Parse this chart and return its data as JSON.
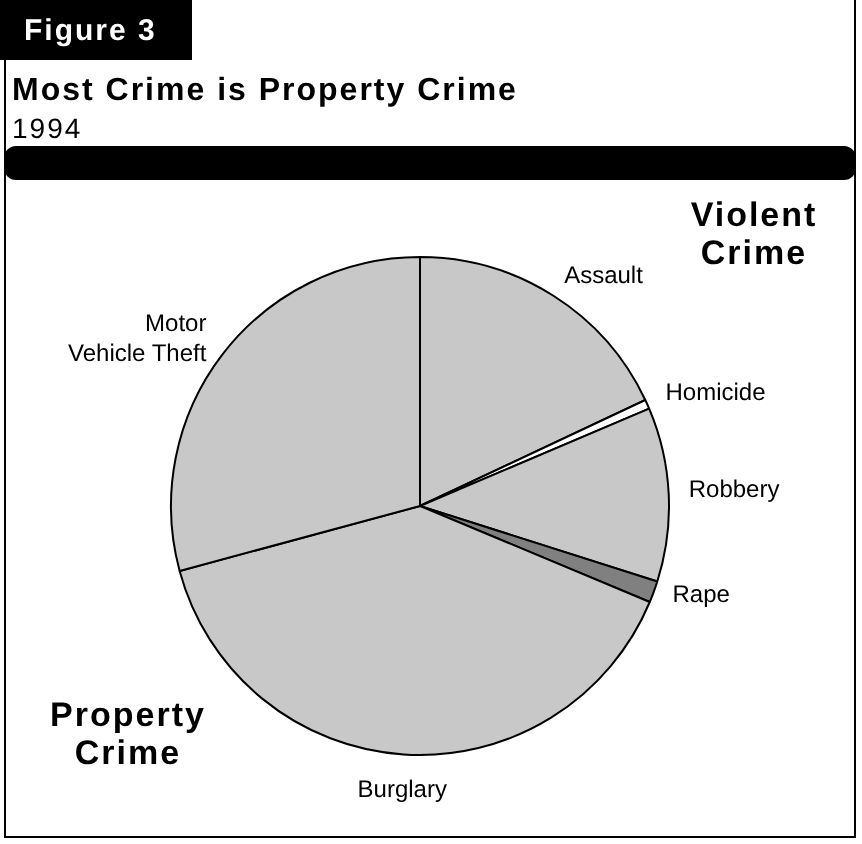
{
  "chart_data": {
    "type": "pie",
    "title": "Most Crime is Property Crime",
    "subtitle": "1994",
    "categories": [
      "Assault",
      "Homicide",
      "Robbery",
      "Rape",
      "Burglary",
      "Motor Vehicle Theft"
    ],
    "values": [
      18,
      0.6,
      11.3,
      1.4,
      39.5,
      29.2
    ],
    "colors": [
      "#c8c8c8",
      "#ffffff",
      "#c8c8c8",
      "#808080",
      "#c8c8c8",
      "#c8c8c8"
    ],
    "annotations": [
      "Figure 3",
      "Violent Crime",
      "Property Crime"
    ]
  }
}
